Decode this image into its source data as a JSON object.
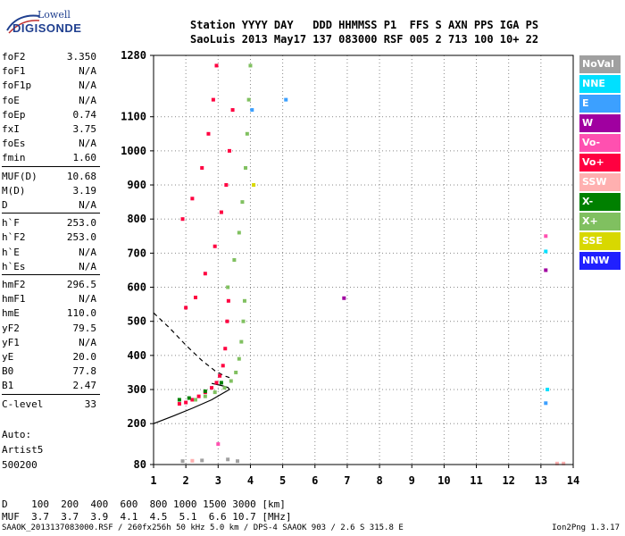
{
  "logo": {
    "line1": "Lowell",
    "line2": "DIGISONDE"
  },
  "header": {
    "labels": "Station YYYY DAY   DDD HHMMSS P1  FFS S AXN PPS IGA PS",
    "values": "SaoLuis 2013 May17 137 083000 RSF 005 2 713 100 10+ 22"
  },
  "params": {
    "group1": [
      {
        "k": "foF2",
        "v": "3.350"
      },
      {
        "k": "foF1",
        "v": "N/A"
      },
      {
        "k": "foF1p",
        "v": "N/A"
      },
      {
        "k": "foE",
        "v": "N/A"
      },
      {
        "k": "foEp",
        "v": "0.74"
      },
      {
        "k": "fxI",
        "v": "3.75"
      },
      {
        "k": "foEs",
        "v": "N/A"
      },
      {
        "k": "fmin",
        "v": "1.60"
      }
    ],
    "group2": [
      {
        "k": "MUF(D)",
        "v": "10.68"
      },
      {
        "k": "M(D)",
        "v": "3.19"
      },
      {
        "k": "D",
        "v": "N/A"
      }
    ],
    "group3": [
      {
        "k": "h`F",
        "v": "253.0"
      },
      {
        "k": "h`F2",
        "v": "253.0"
      },
      {
        "k": "h`E",
        "v": "N/A"
      },
      {
        "k": "h`Es",
        "v": "N/A"
      }
    ],
    "group4": [
      {
        "k": "hmF2",
        "v": "296.5"
      },
      {
        "k": "hmF1",
        "v": "N/A"
      },
      {
        "k": "hmE",
        "v": "110.0"
      },
      {
        "k": "yF2",
        "v": "79.5"
      },
      {
        "k": "yF1",
        "v": "N/A"
      },
      {
        "k": "yE",
        "v": "20.0"
      },
      {
        "k": "B0",
        "v": "77.8"
      },
      {
        "k": "B1",
        "v": "2.47"
      }
    ],
    "group5": [
      {
        "k": "C-level",
        "v": "33"
      }
    ]
  },
  "freetext": {
    "line1": "Auto:",
    "line2": "Artist5",
    "line3": "500200"
  },
  "legend": [
    {
      "label": "NoVal",
      "color": "#a0a0a0"
    },
    {
      "label": "NNE",
      "color": "#00e0ff"
    },
    {
      "label": "E",
      "color": "#3ca0ff"
    },
    {
      "label": "W",
      "color": "#a000a0"
    },
    {
      "label": "Vo-",
      "color": "#ff50b0"
    },
    {
      "label": "Vo+",
      "color": "#ff0040"
    },
    {
      "label": "SSW",
      "color": "#ffb0b0"
    },
    {
      "label": "X-",
      "color": "#008000"
    },
    {
      "label": "X+",
      "color": "#80c060"
    },
    {
      "label": "SSE",
      "color": "#d8d800"
    },
    {
      "label": "NNW",
      "color": "#2020ff"
    }
  ],
  "muf": {
    "dline": "D    100  200  400  600  800 1000 1500 3000 [km]",
    "mline": "MUF  3.7  3.7  3.9  4.1  4.5  5.1  6.6 10.7 [MHz]"
  },
  "footer": {
    "left": "SAAOK_2013137083000.RSF / 260fx256h 50 kHz 5.0 km / DPS-4 SAAOK 903 / 2.6 S 315.8 E",
    "right": "Ion2Png 1.3.17"
  },
  "chart_data": {
    "type": "scatter",
    "xlim": [
      1,
      14
    ],
    "ylim": [
      80,
      1280
    ],
    "x_ticks": [
      1,
      2,
      3,
      4,
      5,
      6,
      7,
      8,
      9,
      10,
      11,
      12,
      13,
      14
    ],
    "y_ticks": [
      80,
      200,
      300,
      400,
      500,
      600,
      700,
      800,
      900,
      1000,
      1100,
      1280
    ],
    "grid": true,
    "series": [
      {
        "name": "Vo+",
        "color": "#ff0040",
        "points": [
          [
            1.8,
            258
          ],
          [
            2.0,
            262
          ],
          [
            2.2,
            270
          ],
          [
            2.4,
            280
          ],
          [
            2.6,
            292
          ],
          [
            2.8,
            305
          ],
          [
            2.95,
            320
          ],
          [
            3.05,
            340
          ],
          [
            3.15,
            370
          ],
          [
            3.22,
            420
          ],
          [
            3.28,
            500
          ],
          [
            3.32,
            560
          ],
          [
            2.0,
            540
          ],
          [
            2.3,
            570
          ],
          [
            2.6,
            640
          ],
          [
            2.9,
            720
          ],
          [
            3.1,
            820
          ],
          [
            3.25,
            900
          ],
          [
            3.35,
            1000
          ],
          [
            3.45,
            1120
          ],
          [
            1.9,
            800
          ],
          [
            2.2,
            860
          ],
          [
            2.5,
            950
          ],
          [
            2.7,
            1050
          ],
          [
            2.85,
            1150
          ],
          [
            2.95,
            1250
          ]
        ]
      },
      {
        "name": "X+",
        "color": "#80c060",
        "points": [
          [
            2.3,
            270
          ],
          [
            2.6,
            280
          ],
          [
            2.9,
            292
          ],
          [
            3.2,
            305
          ],
          [
            3.4,
            325
          ],
          [
            3.55,
            350
          ],
          [
            3.65,
            390
          ],
          [
            3.72,
            440
          ],
          [
            3.78,
            500
          ],
          [
            3.82,
            560
          ],
          [
            3.3,
            600
          ],
          [
            3.5,
            680
          ],
          [
            3.65,
            760
          ],
          [
            3.75,
            850
          ],
          [
            3.85,
            950
          ],
          [
            3.9,
            1050
          ],
          [
            3.95,
            1150
          ],
          [
            4.0,
            1250
          ]
        ]
      },
      {
        "name": "X-",
        "color": "#008000",
        "points": [
          [
            1.8,
            270
          ],
          [
            2.1,
            275
          ],
          [
            2.6,
            295
          ],
          [
            3.1,
            320
          ]
        ]
      },
      {
        "name": "W",
        "color": "#a000a0",
        "points": [
          [
            6.9,
            568
          ],
          [
            13.15,
            650
          ]
        ]
      },
      {
        "name": "NNE",
        "color": "#00e0ff",
        "points": [
          [
            13.15,
            705
          ],
          [
            13.2,
            300
          ]
        ]
      },
      {
        "name": "E",
        "color": "#3ca0ff",
        "points": [
          [
            5.1,
            1150
          ],
          [
            4.05,
            1120
          ],
          [
            13.15,
            260
          ]
        ]
      },
      {
        "name": "SSW",
        "color": "#ffb0b0",
        "points": [
          [
            13.5,
            83
          ],
          [
            13.7,
            83
          ],
          [
            2.2,
            91
          ]
        ]
      },
      {
        "name": "Vo-",
        "color": "#ff50b0",
        "points": [
          [
            13.15,
            750
          ],
          [
            3.0,
            140
          ]
        ]
      },
      {
        "name": "SSE",
        "color": "#d8d800",
        "points": [
          [
            4.1,
            900
          ]
        ]
      },
      {
        "name": "NoVal",
        "color": "#a0a0a0",
        "points": [
          [
            1.9,
            90
          ],
          [
            2.5,
            92
          ],
          [
            3.3,
            95
          ],
          [
            3.6,
            90
          ]
        ]
      }
    ],
    "profile_curve": [
      [
        1.0,
        200
      ],
      [
        1.6,
        222
      ],
      [
        2.2,
        245
      ],
      [
        2.8,
        270
      ],
      [
        3.2,
        292
      ],
      [
        3.35,
        300
      ],
      [
        3.3,
        306
      ],
      [
        3.1,
        312
      ],
      [
        2.8,
        318
      ]
    ],
    "dashed_curve": [
      [
        1.0,
        525
      ],
      [
        1.5,
        480
      ],
      [
        2.0,
        430
      ],
      [
        2.5,
        385
      ],
      [
        2.9,
        355
      ],
      [
        3.2,
        340
      ],
      [
        3.35,
        335
      ]
    ]
  }
}
